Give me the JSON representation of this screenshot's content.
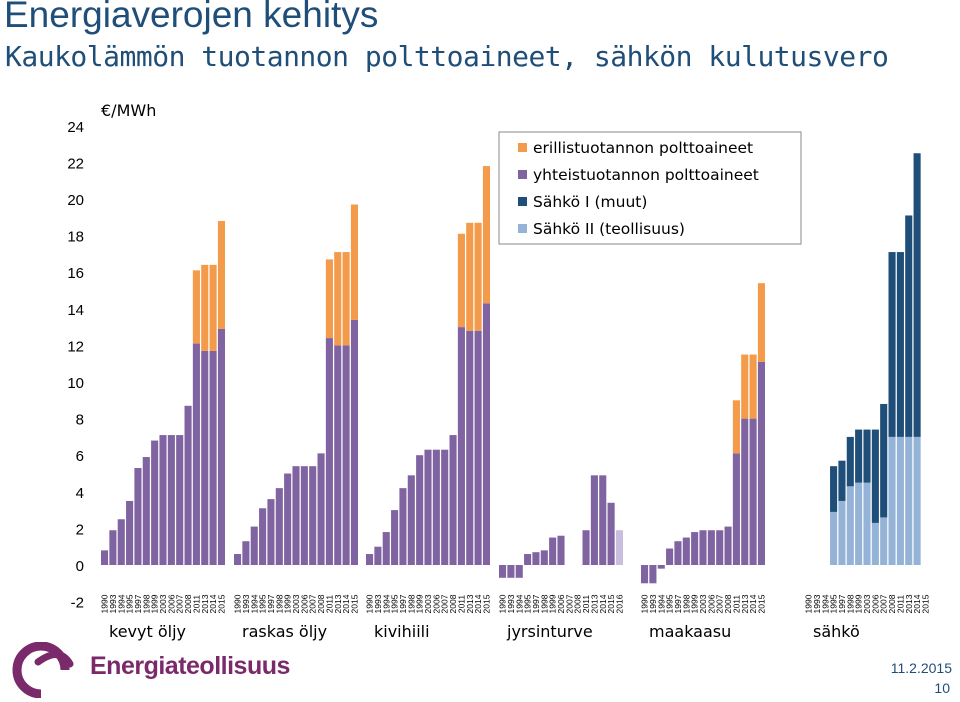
{
  "header": {
    "title": "Energiaverojen kehitys",
    "subtitle": "Kaukolämmön tuotannon polttoaineet, sähkön  kulutusvero"
  },
  "footer": {
    "logo_text": "Energiateollisuus",
    "date": "11.2.2015",
    "page": "10"
  },
  "colors": {
    "erillis": "#f39a4b",
    "yhteis": "#8064a2",
    "sahko1": "#1f4e79",
    "sahko2": "#95b3d7",
    "text": "#1f4e79",
    "logo": "#7a2a6a"
  },
  "chart_data": {
    "type": "bar",
    "stacked": true,
    "unit_label": "€/MWh",
    "ylim": [
      -2,
      24
    ],
    "yticks": [
      -2,
      0,
      2,
      4,
      6,
      8,
      10,
      12,
      14,
      16,
      18,
      20,
      22,
      24
    ],
    "grid": false,
    "legend_position": "top-right",
    "legend": [
      {
        "name": "erillistuotannon polttoaineet",
        "color": "#f39a4b"
      },
      {
        "name": "yhteistuotannon polttoaineet",
        "color": "#8064a2"
      },
      {
        "name": "Sähkö I (muut)",
        "color": "#1f4e79"
      },
      {
        "name": "Sähkö II (teollisuus)",
        "color": "#95b3d7"
      }
    ],
    "groups": [
      {
        "name": "kevyt öljy",
        "years": [
          "1990",
          "1993",
          "1994",
          "1995",
          "1997",
          "1998",
          "1999",
          "2003",
          "2006",
          "2007",
          "2008",
          "2011",
          "2013",
          "2014",
          "2015"
        ],
        "bars": [
          {
            "yhteis": 0.8,
            "erillis": 0
          },
          {
            "yhteis": 1.9,
            "erillis": 0
          },
          {
            "yhteis": 2.5,
            "erillis": 0
          },
          {
            "yhteis": 3.5,
            "erillis": 0
          },
          {
            "yhteis": 5.3,
            "erillis": 0
          },
          {
            "yhteis": 5.9,
            "erillis": 0
          },
          {
            "yhteis": 6.8,
            "erillis": 0
          },
          {
            "yhteis": 7.1,
            "erillis": 0
          },
          {
            "yhteis": 7.1,
            "erillis": 0
          },
          {
            "yhteis": 7.1,
            "erillis": 0
          },
          {
            "yhteis": 8.7,
            "erillis": 0
          },
          {
            "yhteis": 12.1,
            "erillis": 4.0
          },
          {
            "yhteis": 11.7,
            "erillis": 4.7
          },
          {
            "yhteis": 11.7,
            "erillis": 4.7
          },
          {
            "yhteis": 12.9,
            "erillis": 5.9
          }
        ]
      },
      {
        "name": "raskas öljy",
        "years": [
          "1990",
          "1993",
          "1994",
          "1995",
          "1997",
          "1998",
          "1999",
          "2003",
          "2006",
          "2007",
          "2008",
          "2011",
          "2013",
          "2014",
          "2015"
        ],
        "bars": [
          {
            "yhteis": 0.6,
            "erillis": 0
          },
          {
            "yhteis": 1.3,
            "erillis": 0
          },
          {
            "yhteis": 2.1,
            "erillis": 0
          },
          {
            "yhteis": 3.1,
            "erillis": 0
          },
          {
            "yhteis": 3.6,
            "erillis": 0
          },
          {
            "yhteis": 4.2,
            "erillis": 0
          },
          {
            "yhteis": 5.0,
            "erillis": 0
          },
          {
            "yhteis": 5.4,
            "erillis": 0
          },
          {
            "yhteis": 5.4,
            "erillis": 0
          },
          {
            "yhteis": 5.4,
            "erillis": 0
          },
          {
            "yhteis": 6.1,
            "erillis": 0
          },
          {
            "yhteis": 12.4,
            "erillis": 4.3
          },
          {
            "yhteis": 12.0,
            "erillis": 5.1
          },
          {
            "yhteis": 12.0,
            "erillis": 5.1
          },
          {
            "yhteis": 13.4,
            "erillis": 6.3
          }
        ]
      },
      {
        "name": "kivihiili",
        "years": [
          "1990",
          "1993",
          "1994",
          "1995",
          "1997",
          "1998",
          "1999",
          "2003",
          "2006",
          "2007",
          "2008",
          "2011",
          "2013",
          "2014",
          "2015"
        ],
        "bars": [
          {
            "yhteis": 0.6,
            "erillis": 0
          },
          {
            "yhteis": 1.0,
            "erillis": 0
          },
          {
            "yhteis": 1.8,
            "erillis": 0
          },
          {
            "yhteis": 3.0,
            "erillis": 0
          },
          {
            "yhteis": 4.2,
            "erillis": 0
          },
          {
            "yhteis": 4.9,
            "erillis": 0
          },
          {
            "yhteis": 6.0,
            "erillis": 0
          },
          {
            "yhteis": 6.3,
            "erillis": 0
          },
          {
            "yhteis": 6.3,
            "erillis": 0
          },
          {
            "yhteis": 6.3,
            "erillis": 0
          },
          {
            "yhteis": 7.1,
            "erillis": 0
          },
          {
            "yhteis": 13.0,
            "erillis": 5.1
          },
          {
            "yhteis": 12.8,
            "erillis": 5.9
          },
          {
            "yhteis": 12.8,
            "erillis": 5.9
          },
          {
            "yhteis": 14.3,
            "erillis": 7.5
          }
        ]
      },
      {
        "name": "jyrsinturve",
        "years": [
          "1990",
          "1993",
          "1994",
          "1995",
          "1997",
          "1998",
          "1999",
          "2006",
          "2007",
          "2008",
          "2011",
          "2013",
          "2014",
          "2015",
          "2016"
        ],
        "bars": [
          {
            "yhteis": -0.7,
            "erillis": 0
          },
          {
            "yhteis": -0.7,
            "erillis": 0
          },
          {
            "yhteis": -0.7,
            "erillis": 0
          },
          {
            "yhteis": 0.6,
            "erillis": 0
          },
          {
            "yhteis": 0.7,
            "erillis": 0
          },
          {
            "yhteis": 0.8,
            "erillis": 0
          },
          {
            "yhteis": 1.5,
            "erillis": 0
          },
          {
            "yhteis": 1.6,
            "erillis": 0
          },
          {
            "yhteis": 0,
            "erillis": 0
          },
          {
            "yhteis": 0,
            "erillis": 0
          },
          {
            "yhteis": 1.9,
            "erillis": 0
          },
          {
            "yhteis": 4.9,
            "erillis": 0
          },
          {
            "yhteis": 4.9,
            "erillis": 0
          },
          {
            "yhteis": 3.4,
            "erillis": 0
          },
          {
            "yhteis": 1.9,
            "erillis": 0,
            "projected": true
          }
        ]
      },
      {
        "name": "maakaasu",
        "years": [
          "1990",
          "1993",
          "1994",
          "1995",
          "1997",
          "1998",
          "1999",
          "2003",
          "2006",
          "2007",
          "2008",
          "2011",
          "2013",
          "2014",
          "2015"
        ],
        "bars": [
          {
            "yhteis": -1.0,
            "erillis": 0
          },
          {
            "yhteis": -1.0,
            "erillis": 0
          },
          {
            "yhteis": -0.2,
            "erillis": 0
          },
          {
            "yhteis": 0.9,
            "erillis": 0
          },
          {
            "yhteis": 1.3,
            "erillis": 0
          },
          {
            "yhteis": 1.5,
            "erillis": 0
          },
          {
            "yhteis": 1.8,
            "erillis": 0
          },
          {
            "yhteis": 1.9,
            "erillis": 0
          },
          {
            "yhteis": 1.9,
            "erillis": 0
          },
          {
            "yhteis": 1.9,
            "erillis": 0
          },
          {
            "yhteis": 2.1,
            "erillis": 0
          },
          {
            "yhteis": 6.1,
            "erillis": 2.9
          },
          {
            "yhteis": 8.0,
            "erillis": 3.5
          },
          {
            "yhteis": 8.0,
            "erillis": 3.5
          },
          {
            "yhteis": 11.1,
            "erillis": 4.3
          }
        ]
      },
      {
        "name": "sähkö",
        "years": [
          "1990",
          "1993",
          "1994",
          "1995",
          "1997",
          "1998",
          "1999",
          "2003",
          "2006",
          "2007",
          "2008",
          "2011",
          "2013",
          "2014",
          "2015"
        ],
        "bars": [
          {
            "sahko2": 0,
            "sahko1": 0
          },
          {
            "sahko2": 0,
            "sahko1": 0
          },
          {
            "sahko2": 0,
            "sahko1": 0
          },
          {
            "sahko2": 2.9,
            "sahko1": 2.5
          },
          {
            "sahko2": 3.5,
            "sahko1": 2.2
          },
          {
            "sahko2": 4.3,
            "sahko1": 2.7
          },
          {
            "sahko2": 4.5,
            "sahko1": 2.9
          },
          {
            "sahko2": 4.5,
            "sahko1": 2.9
          },
          {
            "sahko2": 2.3,
            "sahko1": 5.1
          },
          {
            "sahko2": 2.6,
            "sahko1": 6.2
          },
          {
            "sahko2": 7.0,
            "sahko1": 10.1
          },
          {
            "sahko2": 7.0,
            "sahko1": 10.1
          },
          {
            "sahko2": 7.0,
            "sahko1": 12.1
          },
          {
            "sahko2": 7.0,
            "sahko1": 15.5
          },
          {
            "sahko2": 0,
            "sahko1": 0
          }
        ]
      }
    ]
  }
}
